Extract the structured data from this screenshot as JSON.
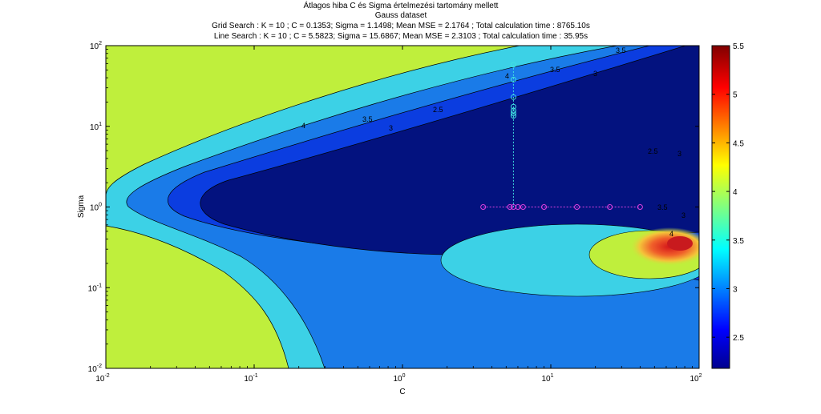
{
  "chart_data": {
    "type": "contour",
    "title": "Átlagos hiba C és Sigma értelmezési tartomány mellett",
    "subtitle": "Gauss dataset",
    "grid_search_text": "Grid Search : K = 10 ; C = 0.1353; Sigma =  1.1498; Mean MSE = 2.1764 ; Total calculation time : 8765.10s",
    "line_search_text": "Line Search : K = 10 ; C = 5.5823; Sigma =  15.6867; Mean MSE =  2.3103 ; Total calculation time : 35.95s",
    "xlabel": "C",
    "ylabel": "Sigma",
    "x_scale": "log",
    "y_scale": "log",
    "xlim": [
      0.01,
      100
    ],
    "ylim": [
      0.01,
      100
    ],
    "x_ticks": [
      {
        "value": 0.01,
        "base": "10",
        "exp": "-2"
      },
      {
        "value": 0.1,
        "base": "10",
        "exp": "-1"
      },
      {
        "value": 1,
        "base": "10",
        "exp": "0"
      },
      {
        "value": 10,
        "base": "10",
        "exp": "1"
      },
      {
        "value": 100,
        "base": "10",
        "exp": "2"
      }
    ],
    "y_ticks": [
      {
        "value": 0.01,
        "base": "10",
        "exp": "-2"
      },
      {
        "value": 0.1,
        "base": "10",
        "exp": "-1"
      },
      {
        "value": 1,
        "base": "10",
        "exp": "0"
      },
      {
        "value": 10,
        "base": "10",
        "exp": "1"
      },
      {
        "value": 100,
        "base": "10",
        "exp": "2"
      }
    ],
    "colorbar": {
      "min": 2.18,
      "max": 5.5,
      "ticks": [
        "2.5",
        "3",
        "3.5",
        "4",
        "4.5",
        "5",
        "5.5"
      ],
      "tick_values": [
        2.5,
        3,
        3.5,
        4,
        4.5,
        5,
        5.5
      ]
    },
    "contour_labels": [
      "4",
      "3.5",
      "3",
      "2.5",
      "3.5",
      "4",
      "3.5",
      "3",
      "2.5",
      "3",
      "3.5",
      "3",
      "4"
    ],
    "line_search_points": [
      {
        "c": 3.5,
        "sigma": 1.0
      },
      {
        "c": 5.3,
        "sigma": 1.0
      },
      {
        "c": 5.6,
        "sigma": 1.0
      },
      {
        "c": 6.0,
        "sigma": 1.0
      },
      {
        "c": 6.5,
        "sigma": 1.0
      },
      {
        "c": 9.0,
        "sigma": 1.0
      },
      {
        "c": 15.0,
        "sigma": 1.0
      },
      {
        "c": 25.0,
        "sigma": 1.0
      },
      {
        "c": 40.0,
        "sigma": 1.0
      },
      {
        "c": 5.6,
        "sigma": 13.5
      },
      {
        "c": 5.6,
        "sigma": 14.5
      },
      {
        "c": 5.6,
        "sigma": 15.7
      },
      {
        "c": 5.6,
        "sigma": 17.5
      },
      {
        "c": 5.6,
        "sigma": 23.0
      },
      {
        "c": 5.6,
        "sigma": 38.0
      },
      {
        "c": 5.6,
        "sigma": 58.0
      }
    ],
    "colors": {
      "background": "#bfef3c",
      "cyan_band": "#3cd1e6",
      "mid_blue": "#1a7be8",
      "blue": "#0b3de0",
      "dark_blue": "#03127f",
      "point_color": "#e040e0",
      "vertical_point_color": "#40e0e0"
    }
  }
}
